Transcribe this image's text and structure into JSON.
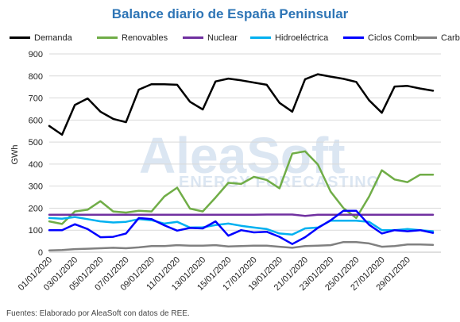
{
  "chart_data": {
    "type": "line",
    "title": "Balance diario de España Peninsular",
    "xlabel": "",
    "ylabel": "GWh",
    "ylim": [
      0,
      900
    ],
    "yticks": [
      0,
      100,
      200,
      300,
      400,
      500,
      600,
      700,
      800,
      900
    ],
    "grid": true,
    "legend_position": "top",
    "x": [
      "01/01/2020",
      "02/01/2020",
      "03/01/2020",
      "04/01/2020",
      "05/01/2020",
      "06/01/2020",
      "07/01/2020",
      "08/01/2020",
      "09/01/2020",
      "10/01/2020",
      "11/01/2020",
      "12/01/2020",
      "13/01/2020",
      "14/01/2020",
      "15/01/2020",
      "16/01/2020",
      "17/01/2020",
      "18/01/2020",
      "19/01/2020",
      "20/01/2020",
      "21/01/2020",
      "22/01/2020",
      "23/01/2020",
      "24/01/2020",
      "25/01/2020",
      "26/01/2020",
      "27/01/2020",
      "28/01/2020",
      "29/01/2020",
      "30/01/2020",
      "31/01/2020"
    ],
    "x_tick_labels": [
      "01/01/2020",
      "03/01/2020",
      "05/01/2020",
      "07/01/2020",
      "09/01/2020",
      "11/01/2020",
      "13/01/2020",
      "15/01/2020",
      "17/01/2020",
      "19/01/2020",
      "21/01/2020",
      "23/01/2020",
      "25/01/2020",
      "27/01/2020",
      "29/01/2020"
    ],
    "series": [
      {
        "name": "Demanda",
        "color": "#000000",
        "values": [
          573,
          533,
          668,
          698,
          638,
          605,
          590,
          738,
          763,
          762,
          760,
          683,
          648,
          775,
          788,
          780,
          770,
          760,
          678,
          638,
          785,
          808,
          797,
          787,
          773,
          690,
          633,
          752,
          755,
          743,
          733
        ]
      },
      {
        "name": "Renovables",
        "color": "#70ad47",
        "values": [
          140,
          128,
          185,
          193,
          232,
          185,
          180,
          188,
          185,
          253,
          293,
          198,
          185,
          248,
          315,
          310,
          342,
          328,
          290,
          448,
          458,
          398,
          275,
          200,
          155,
          252,
          372,
          330,
          318,
          352,
          352
        ]
      },
      {
        "name": "Nuclear",
        "color": "#7030a0",
        "values": [
          170,
          170,
          170,
          170,
          170,
          170,
          170,
          170,
          170,
          170,
          170,
          170,
          170,
          170,
          170,
          170,
          170,
          171,
          171,
          171,
          165,
          170,
          170,
          170,
          170,
          170,
          170,
          170,
          170,
          170,
          170
        ]
      },
      {
        "name": "Hidroeléctrica",
        "color": "#00b0f0",
        "values": [
          155,
          152,
          160,
          150,
          140,
          135,
          138,
          150,
          145,
          130,
          138,
          112,
          113,
          123,
          130,
          120,
          112,
          105,
          85,
          80,
          108,
          112,
          143,
          143,
          143,
          138,
          100,
          100,
          105,
          100,
          95
        ]
      },
      {
        "name": "Ciclos Comb.",
        "color": "#0000ff",
        "values": [
          100,
          100,
          127,
          105,
          68,
          70,
          85,
          155,
          150,
          122,
          98,
          110,
          108,
          140,
          75,
          100,
          90,
          93,
          70,
          37,
          68,
          110,
          145,
          188,
          188,
          125,
          85,
          100,
          95,
          100,
          88
        ]
      },
      {
        "name": "Carbón",
        "color": "#808080",
        "values": [
          8,
          10,
          14,
          16,
          18,
          20,
          18,
          22,
          28,
          28,
          32,
          30,
          30,
          32,
          26,
          28,
          30,
          30,
          25,
          20,
          28,
          30,
          32,
          46,
          46,
          40,
          25,
          28,
          35,
          35,
          33
        ]
      }
    ]
  },
  "watermark": {
    "brand": "AleaSoft",
    "tagline": "ENERGY FORECASTING"
  },
  "footer": {
    "source": "Fuentes: Elaborado por AleaSoft con datos de REE."
  }
}
